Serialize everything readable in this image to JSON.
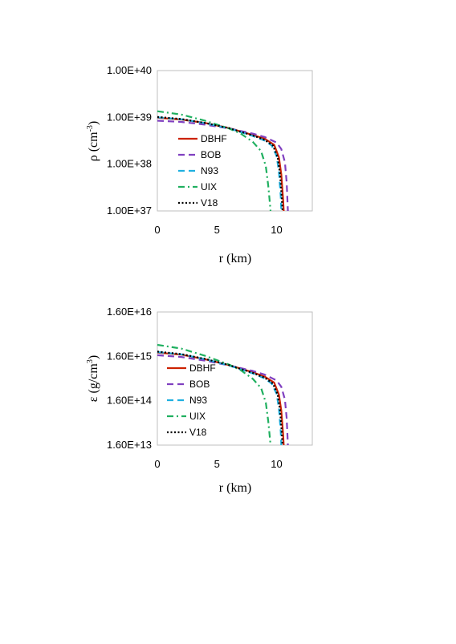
{
  "chart_data": [
    {
      "type": "line",
      "ylabel": "ρ (cm⁻³)",
      "ylabel_base": "ρ (cm",
      "ylabel_exp": "-3",
      "ylabel_close": ")",
      "xlabel": "r (km)",
      "log_y": true,
      "xlim": [
        0,
        13
      ],
      "ylim": [
        1e+37,
        1e+40
      ],
      "x_ticks": [
        0,
        5,
        10
      ],
      "x_tick_labels": [
        "0",
        "5",
        "10"
      ],
      "y_ticks": [
        1e+37,
        1e+38,
        1e+39,
        1e+40
      ],
      "y_tick_labels": [
        "1.00E+37",
        "1.00E+38",
        "1.00E+39",
        "1.00E+40"
      ],
      "grid": false,
      "legend_position": "lower-left",
      "series": [
        {
          "name": "DBHF",
          "color": "#cc2200",
          "dash": "solid",
          "x": [
            0,
            2,
            4,
            6,
            8,
            9,
            9.8,
            10.2,
            10.4,
            10.55,
            10.6
          ],
          "y": [
            9.8e+38,
            9e+38,
            7.6e+38,
            5.9e+38,
            4.2e+38,
            3.5e+38,
            2.6e+38,
            1.4e+38,
            6e+37,
            1.8e+37,
            1e+37
          ]
        },
        {
          "name": "BOB",
          "color": "#8040c0",
          "dash": "dashed",
          "x": [
            0,
            2,
            4,
            6,
            8,
            9,
            10,
            10.4,
            10.7,
            10.85,
            10.95
          ],
          "y": [
            8.5e+38,
            8e+38,
            7e+38,
            5.8e+38,
            4.5e+38,
            3.8e+38,
            2.9e+38,
            2.1e+38,
            1.1e+38,
            4e+37,
            1e+37
          ]
        },
        {
          "name": "N93",
          "color": "#1fb0e0",
          "dash": "dashed",
          "x": [
            0,
            2,
            4,
            6,
            8,
            9,
            9.6,
            10.0,
            10.2,
            10.35,
            10.4
          ],
          "y": [
            1e+39,
            9.1e+38,
            7.5e+38,
            5.8e+38,
            4e+38,
            3.2e+38,
            2.5e+38,
            1.5e+38,
            7e+37,
            2e+37,
            1e+37
          ]
        },
        {
          "name": "UIX",
          "color": "#20b060",
          "dash": "dashdot",
          "x": [
            0,
            2,
            4,
            6,
            7,
            8,
            8.7,
            9.1,
            9.3,
            9.45,
            9.5
          ],
          "y": [
            1.35e+39,
            1.15e+39,
            8.5e+38,
            5.8e+38,
            4.5e+38,
            3e+38,
            1.9e+38,
            9e+37,
            3.5e+37,
            1.4e+37,
            1e+37
          ]
        },
        {
          "name": "V18",
          "color": "#000000",
          "dash": "dotted",
          "x": [
            0,
            2,
            4,
            6,
            8,
            9,
            9.7,
            10.1,
            10.3,
            10.45,
            10.5
          ],
          "y": [
            1.02e+39,
            9.2e+38,
            7.6e+38,
            5.9e+38,
            4.1e+38,
            3.3e+38,
            2.5e+38,
            1.4e+38,
            6e+37,
            1.8e+37,
            1e+37
          ]
        }
      ]
    },
    {
      "type": "line",
      "ylabel": "ε (g/cm³)",
      "ylabel_base": "ε (g/cm",
      "ylabel_exp": "3",
      "ylabel_close": ")",
      "xlabel": "r (km)",
      "log_y": true,
      "xlim": [
        0,
        13
      ],
      "ylim": [
        16000000000000.0,
        1.6e+16
      ],
      "x_ticks": [
        0,
        5,
        10
      ],
      "x_tick_labels": [
        "0",
        "5",
        "10"
      ],
      "y_ticks": [
        16000000000000.0,
        160000000000000.0,
        1600000000000000.0,
        1.6e+16
      ],
      "y_tick_labels": [
        "1.60E+13",
        "1.60E+14",
        "1.60E+15",
        "1.60E+16"
      ],
      "grid": false,
      "legend_position": "lower-left",
      "series": [
        {
          "name": "DBHF",
          "color": "#cc2200",
          "dash": "solid",
          "x": [
            0,
            2,
            4,
            6,
            8,
            9,
            9.8,
            10.2,
            10.4,
            10.55,
            10.6
          ],
          "y": [
            1950000000000000.0,
            1750000000000000.0,
            1380000000000000.0,
            1020000000000000.0,
            700000000000000.0,
            560000000000000.0,
            410000000000000.0,
            220000000000000.0,
            95000000000000.0,
            29000000000000.0,
            16000000000000.0
          ]
        },
        {
          "name": "BOB",
          "color": "#8040c0",
          "dash": "dashed",
          "x": [
            0,
            2,
            4,
            6,
            8,
            9,
            10,
            10.4,
            10.7,
            10.85,
            10.95
          ],
          "y": [
            1700000000000000.0,
            1550000000000000.0,
            1280000000000000.0,
            1000000000000000.0,
            750000000000000.0,
            620000000000000.0,
            460000000000000.0,
            330000000000000.0,
            170000000000000.0,
            64000000000000.0,
            16000000000000.0
          ]
        },
        {
          "name": "N93",
          "color": "#1fb0e0",
          "dash": "dashed",
          "x": [
            0,
            2,
            4,
            6,
            8,
            9,
            9.6,
            10.0,
            10.2,
            10.35,
            10.4
          ],
          "y": [
            2000000000000000.0,
            1780000000000000.0,
            1380000000000000.0,
            1000000000000000.0,
            660000000000000.0,
            510000000000000.0,
            390000000000000.0,
            230000000000000.0,
            110000000000000.0,
            32000000000000.0,
            16000000000000.0
          ]
        },
        {
          "name": "UIX",
          "color": "#20b060",
          "dash": "dashdot",
          "x": [
            0,
            2,
            4,
            6,
            7,
            8,
            8.7,
            9.1,
            9.3,
            9.45,
            9.5
          ],
          "y": [
            2900000000000000.0,
            2400000000000000.0,
            1650000000000000.0,
            1050000000000000.0,
            780000000000000.0,
            500000000000000.0,
            310000000000000.0,
            145000000000000.0,
            56000000000000.0,
            22000000000000.0,
            16000000000000.0
          ]
        },
        {
          "name": "V18",
          "color": "#000000",
          "dash": "dotted",
          "x": [
            0,
            2,
            4,
            6,
            8,
            9,
            9.7,
            10.1,
            10.3,
            10.45,
            10.5
          ],
          "y": [
            2050000000000000.0,
            1800000000000000.0,
            1400000000000000.0,
            1020000000000000.0,
            680000000000000.0,
            530000000000000.0,
            390000000000000.0,
            220000000000000.0,
            95000000000000.0,
            29000000000000.0,
            16000000000000.0
          ]
        }
      ]
    }
  ]
}
